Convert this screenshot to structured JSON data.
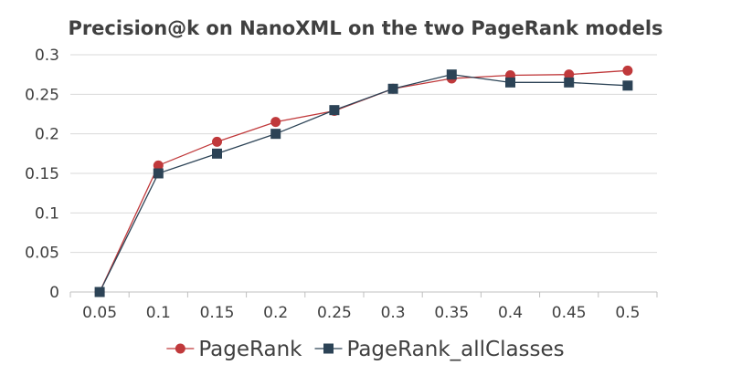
{
  "chart_data": {
    "type": "line",
    "title": "Precision@k on NanoXML on the two PageRank models",
    "xlabel": "",
    "ylabel": "",
    "categories": [
      "0.05",
      "0.1",
      "0.15",
      "0.2",
      "0.25",
      "0.3",
      "0.35",
      "0.4",
      "0.45",
      "0.5"
    ],
    "ylim": [
      0,
      0.3
    ],
    "yticks": [
      "0",
      "0.05",
      "0.1",
      "0.15",
      "0.2",
      "0.25",
      "0.3"
    ],
    "grid": true,
    "legend_position": "bottom",
    "series": [
      {
        "name": "PageRank",
        "color": "#c0393b",
        "marker": "circle",
        "values": [
          0,
          0.16,
          0.19,
          0.215,
          0.229,
          0.257,
          0.27,
          0.274,
          0.275,
          0.28
        ]
      },
      {
        "name": "PageRank_allClasses",
        "color": "#2c4356",
        "marker": "square",
        "values": [
          0,
          0.15,
          0.175,
          0.2,
          0.23,
          0.257,
          0.275,
          0.265,
          0.265,
          0.261
        ]
      }
    ]
  }
}
